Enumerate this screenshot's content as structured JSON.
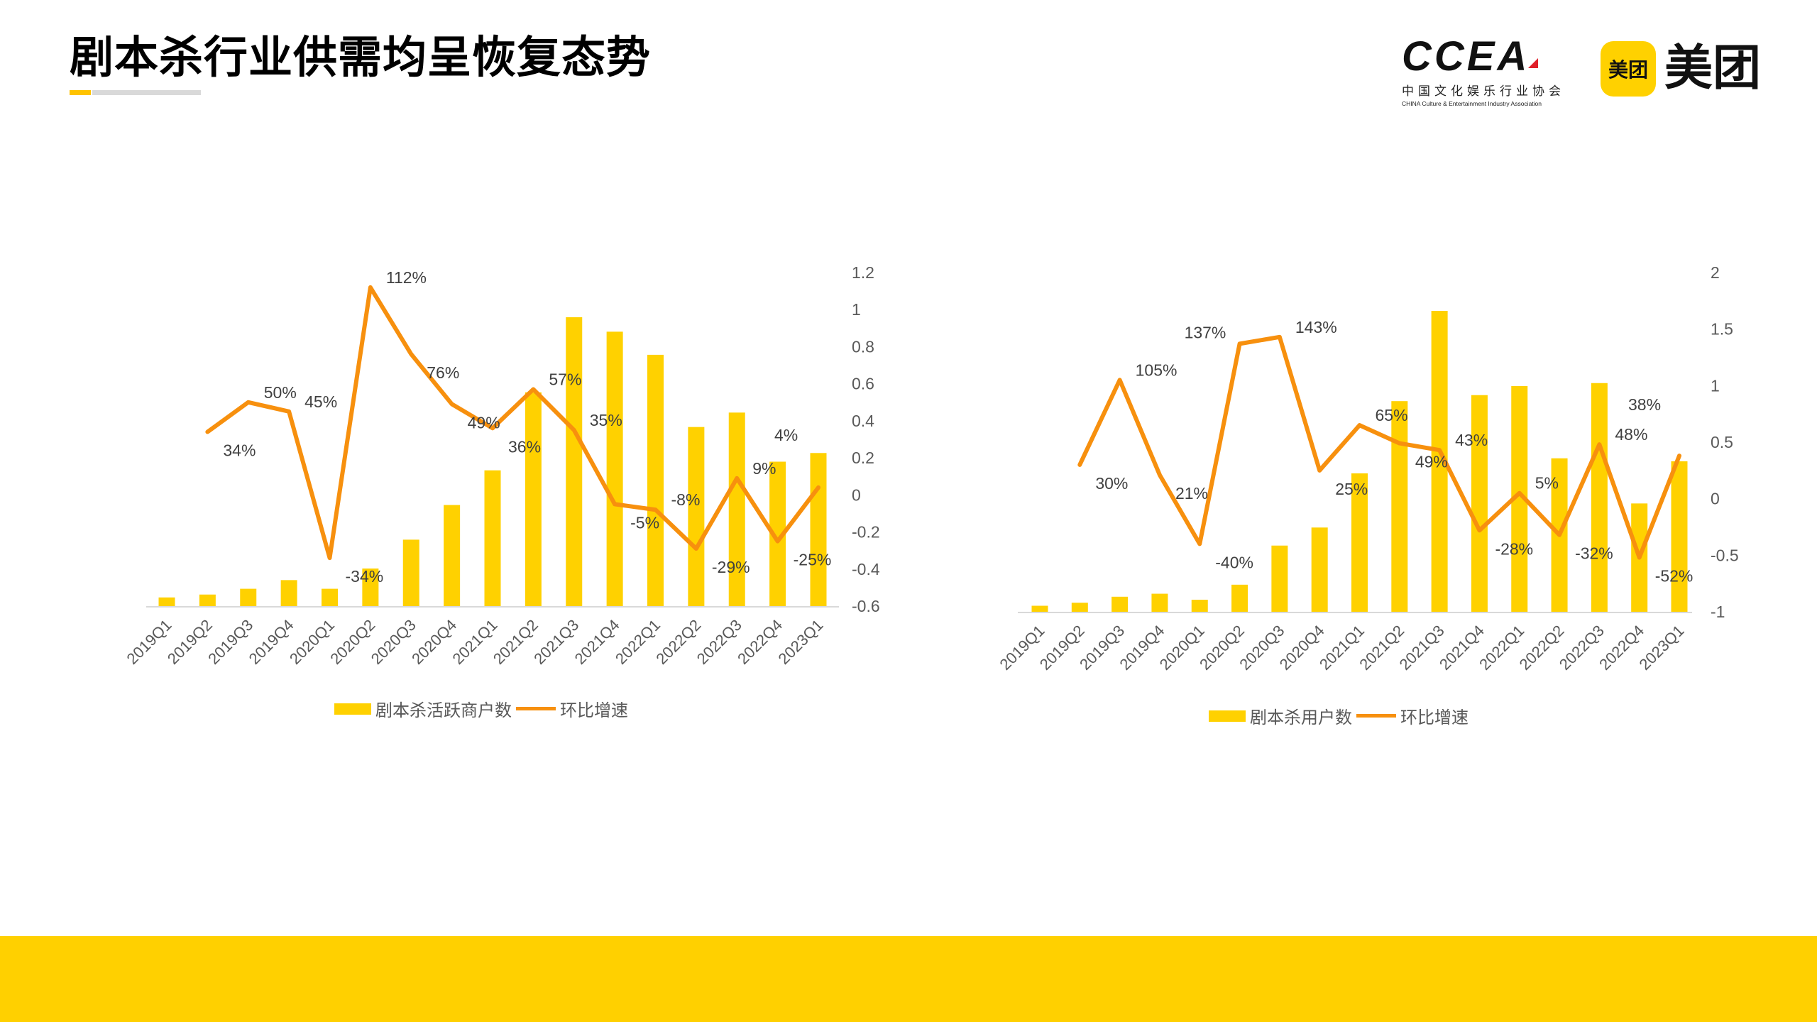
{
  "header": {
    "title": "剧本杀行业供需均呈恢复态势",
    "logos": {
      "ccea_mark": "CCEA",
      "ccea_cn": "中国文化娱乐行业协会",
      "ccea_en": "CHINA Culture & Entertainment Industry Association",
      "meituan_icon": "美团",
      "meituan_text": "美团"
    }
  },
  "colors": {
    "bar": "#FFD100",
    "line": "#F7900E",
    "band": "#FFD000",
    "accent": "#FFC300"
  },
  "chart_data": [
    {
      "type": "bar+line",
      "title": "",
      "categories": [
        "2019Q1",
        "2019Q2",
        "2019Q3",
        "2019Q4",
        "2020Q1",
        "2020Q2",
        "2020Q3",
        "2020Q4",
        "2021Q1",
        "2021Q2",
        "2021Q3",
        "2021Q4",
        "2022Q1",
        "2022Q2",
        "2022Q3",
        "2022Q4",
        "2023Q1"
      ],
      "series": [
        {
          "name": "剧本杀活跃商户数",
          "type": "bar",
          "axis": "none (relative index, max=100)",
          "values": [
            3,
            4,
            6,
            9,
            6,
            13,
            23,
            35,
            47,
            74,
            100,
            95,
            87,
            62,
            67,
            50,
            53
          ]
        },
        {
          "name": "环比增速",
          "type": "line",
          "axis": "right",
          "values": [
            null,
            0.34,
            0.5,
            0.45,
            -0.34,
            1.12,
            0.76,
            0.49,
            0.36,
            0.57,
            0.35,
            -0.05,
            -0.08,
            -0.29,
            0.09,
            -0.25,
            0.04
          ],
          "labels": [
            "",
            "34%",
            "50%",
            "45%",
            "-34%",
            "112%",
            "76%",
            "49%",
            "36%",
            "57%",
            "35%",
            "-5%",
            "-8%",
            "-29%",
            "9%",
            "-25%",
            "4%"
          ]
        }
      ],
      "y2_ticks": [
        "1.2",
        "1",
        "0.8",
        "0.6",
        "0.4",
        "0.2",
        "0",
        "-0.2",
        "-0.4",
        "-0.6"
      ],
      "y2lim": [
        -0.6,
        1.2
      ],
      "legend": [
        "剧本杀活跃商户数",
        "环比增速"
      ],
      "legend_position": "bottom",
      "grid": false
    },
    {
      "type": "bar+line",
      "title": "",
      "categories": [
        "2019Q1",
        "2019Q2",
        "2019Q3",
        "2019Q4",
        "2020Q1",
        "2020Q2",
        "2020Q3",
        "2020Q4",
        "2021Q1",
        "2021Q2",
        "2021Q3",
        "2021Q4",
        "2022Q1",
        "2022Q2",
        "2022Q3",
        "2022Q4",
        "2023Q1"
      ],
      "series": [
        {
          "name": "剧本杀用户数",
          "type": "bar",
          "axis": "none (relative index, max=100)",
          "values": [
            2,
            3,
            5,
            6,
            4,
            9,
            22,
            28,
            46,
            70,
            100,
            72,
            75,
            51,
            76,
            36,
            50
          ]
        },
        {
          "name": "环比增速",
          "type": "line",
          "axis": "right",
          "values": [
            null,
            0.3,
            1.05,
            0.21,
            -0.4,
            1.37,
            1.43,
            0.25,
            0.65,
            0.49,
            0.43,
            -0.28,
            0.05,
            -0.32,
            0.48,
            -0.52,
            0.38
          ],
          "labels": [
            "",
            "30%",
            "105%",
            "21%",
            "-40%",
            "137%",
            "143%",
            "25%",
            "65%",
            "49%",
            "43%",
            "-28%",
            "5%",
            "-32%",
            "48%",
            "-52%",
            "38%"
          ]
        }
      ],
      "y2_ticks": [
        "2",
        "1.5",
        "1",
        "0.5",
        "0",
        "-0.5",
        "-1"
      ],
      "y2lim": [
        -1,
        2
      ],
      "legend": [
        "剧本杀用户数",
        "环比增速"
      ],
      "legend_position": "bottom",
      "grid": false
    }
  ]
}
